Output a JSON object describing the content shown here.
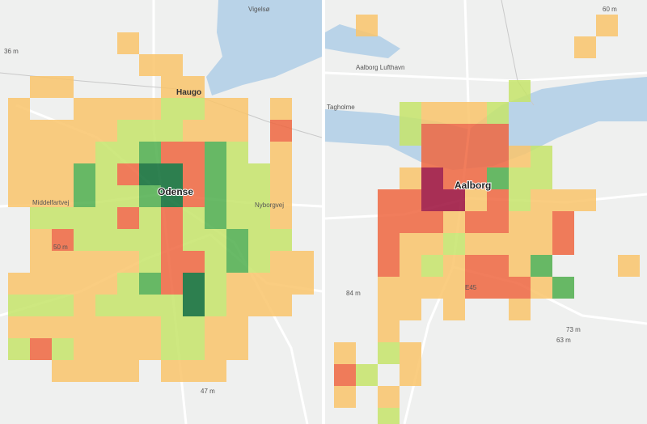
{
  "left_map": {
    "labels": [
      "Vigelsø",
      "Haugo",
      "Odense",
      "Nyborgvej",
      "Middelfartvej",
      "50 m",
      "47 m",
      "36 m"
    ]
  },
  "right_map": {
    "labels": [
      "Aalborg",
      "Aalborg Lufthavn",
      "Tagholme",
      "E45",
      "84 m",
      "63 m",
      "73 m",
      "60 m"
    ]
  }
}
